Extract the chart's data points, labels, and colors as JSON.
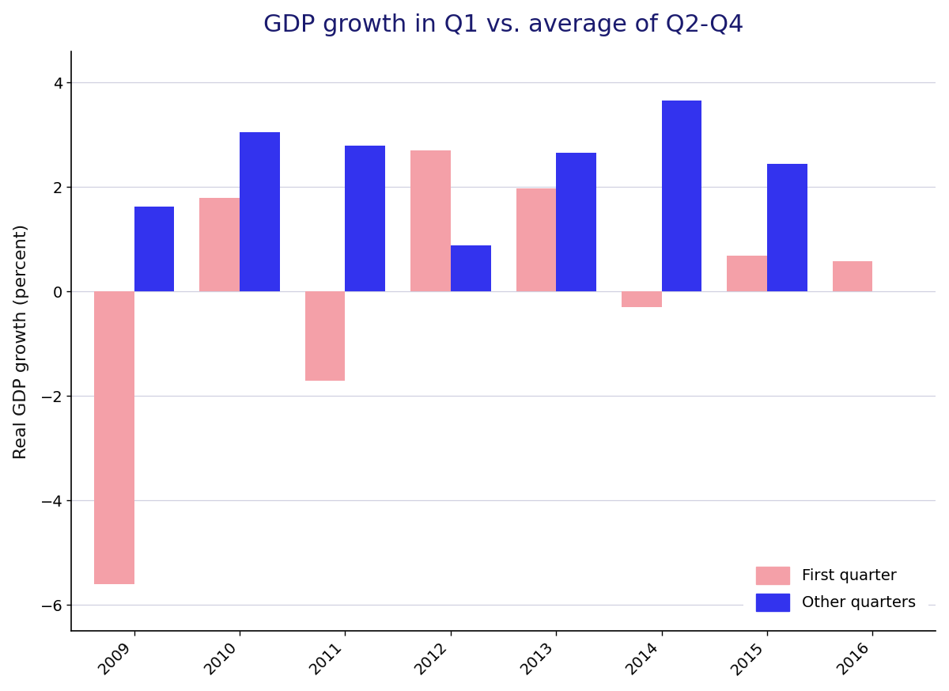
{
  "years": [
    2009,
    2010,
    2011,
    2012,
    2013,
    2014,
    2015,
    2016
  ],
  "first_quarter": [
    -5.6,
    1.8,
    -1.7,
    2.7,
    1.97,
    -0.3,
    0.68,
    0.58
  ],
  "other_quarters": [
    1.63,
    3.05,
    2.8,
    0.88,
    2.65,
    3.65,
    2.45,
    null
  ],
  "first_quarter_color": "#F4A0A8",
  "other_quarters_color": "#3333EE",
  "title": "GDP growth in Q1 vs. average of Q2-Q4",
  "title_color": "#1a1a6e",
  "ylabel": "Real GDP growth (percent)",
  "ylabel_color": "#111111",
  "ylim": [
    -6.5,
    4.6
  ],
  "yticks": [
    -6,
    -4,
    -2,
    0,
    2,
    4
  ],
  "legend_labels": [
    "First quarter",
    "Other quarters"
  ],
  "background_color": "#ffffff",
  "bar_width": 0.38,
  "title_fontsize": 22,
  "axis_label_fontsize": 16,
  "tick_fontsize": 14,
  "legend_fontsize": 14,
  "grid_color": "#d0d0e0",
  "spine_color": "#000000",
  "xtick_rotation": 45
}
